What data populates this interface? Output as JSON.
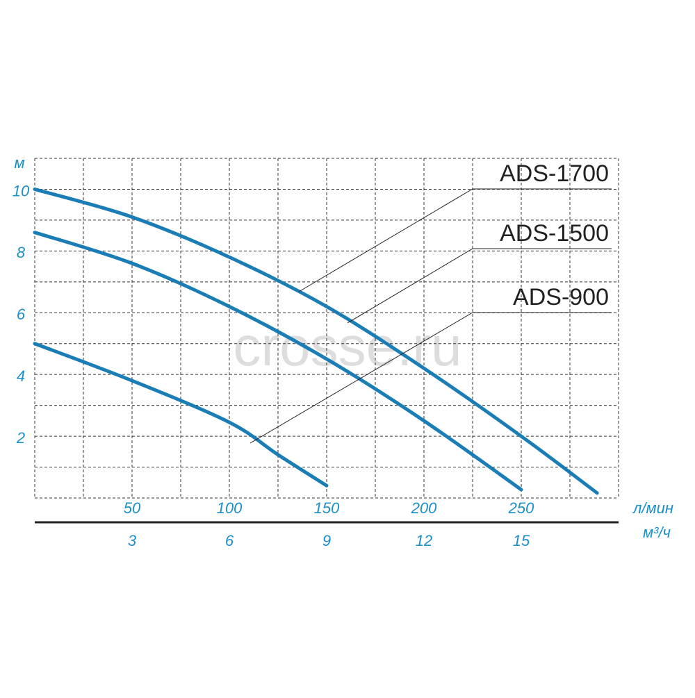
{
  "chart_data": {
    "type": "line",
    "y_label": "м",
    "x_label": "л/мин",
    "x2_label": "м³/ч",
    "watermark": "crosse.ru",
    "xlim": [
      0,
      300
    ],
    "ylim": [
      0,
      11
    ],
    "xticks": [
      50,
      100,
      150,
      200,
      250
    ],
    "x2lim": [
      0,
      18
    ],
    "x2ticks": [
      3,
      6,
      9,
      12,
      15
    ],
    "yticks": [
      2,
      4,
      6,
      8,
      10
    ],
    "xgrid": [
      0,
      25,
      50,
      75,
      100,
      125,
      150,
      175,
      200,
      225,
      250,
      275,
      300
    ],
    "ygrid": [
      0,
      1,
      2,
      3,
      4,
      5,
      6,
      7,
      8,
      9,
      10,
      11
    ],
    "grid": true,
    "series": [
      {
        "name": "ADS-1700",
        "color": "#1b7db5",
        "x": [
          0,
          50,
          100,
          150,
          200,
          250,
          289
        ],
        "values": [
          10,
          9.1,
          7.8,
          6.2,
          4.2,
          2.0,
          0.16
        ]
      },
      {
        "name": "ADS-1500",
        "color": "#1b7db5",
        "x": [
          0,
          50,
          100,
          150,
          200,
          250
        ],
        "values": [
          8.6,
          7.6,
          6.2,
          4.5,
          2.5,
          0.27
        ]
      },
      {
        "name": "ADS-900",
        "color": "#1b7db5",
        "x": [
          0,
          50,
          100,
          125,
          150
        ],
        "values": [
          5,
          3.8,
          2.45,
          1.4,
          0.4
        ]
      }
    ]
  }
}
